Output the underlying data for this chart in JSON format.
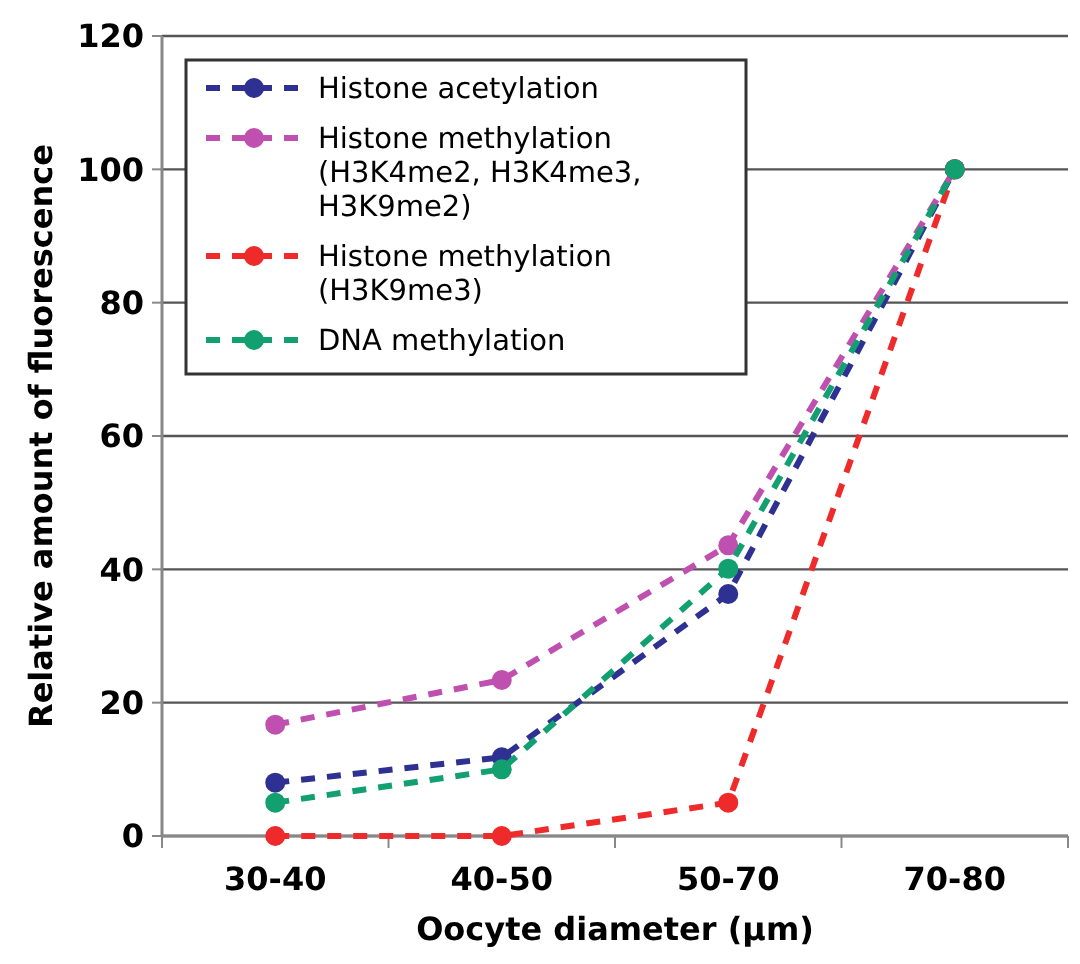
{
  "chart_data": {
    "type": "line",
    "xlabel": "Oocyte diameter (µm)",
    "ylabel": "Relative amount of fluorescence",
    "categories": [
      "30-40",
      "40-50",
      "50-70",
      "70-80"
    ],
    "series": [
      {
        "name": "Histone acetylation",
        "color": "#2e3192",
        "values": [
          8.0,
          11.8,
          36.3,
          100
        ]
      },
      {
        "name": "Histone methylation\n(H3K4me2, H3K4me3,\nH3K9me2)",
        "color": "#c050b0",
        "values": [
          16.7,
          23.4,
          43.6,
          100
        ]
      },
      {
        "name": "Histone methylation\n(H3K9me3)",
        "color": "#ee2a2a",
        "values": [
          0,
          0,
          5,
          100
        ]
      },
      {
        "name": "DNA methylation",
        "color": "#12a070",
        "values": [
          5.0,
          10.0,
          40.1,
          100
        ]
      }
    ],
    "ylim": [
      0,
      120
    ],
    "yticks": [
      0,
      20,
      40,
      60,
      80,
      100,
      120
    ],
    "grid": "y",
    "legend": "top left",
    "marker": "circle",
    "line_style": "dashed"
  }
}
